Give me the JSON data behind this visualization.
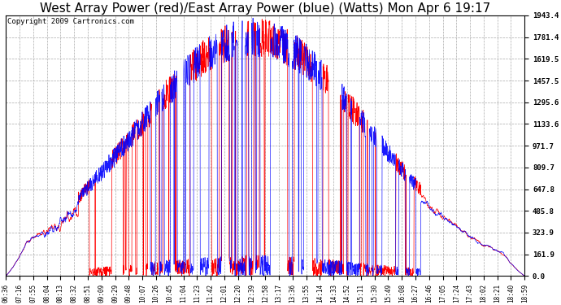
{
  "title": "West Array Power (red)/East Array Power (blue) (Watts) Mon Apr 6 19:17",
  "copyright": "Copyright 2009 Cartronics.com",
  "yticks": [
    0.0,
    161.9,
    323.9,
    485.8,
    647.8,
    809.7,
    971.7,
    1133.6,
    1295.6,
    1457.5,
    1619.5,
    1781.4,
    1943.4
  ],
  "ymax": 1943.4,
  "ymin": 0.0,
  "color_red": "#ff0000",
  "color_blue": "#0000ff",
  "bg_color": "#ffffff",
  "grid_color": "#aaaaaa",
  "title_fontsize": 11,
  "copyright_fontsize": 6.5,
  "xtick_labels": [
    "06:36",
    "07:16",
    "07:55",
    "08:04",
    "08:13",
    "08:32",
    "08:51",
    "09:09",
    "09:29",
    "09:48",
    "10:07",
    "10:26",
    "10:45",
    "11:04",
    "11:23",
    "11:42",
    "12:01",
    "12:20",
    "12:39",
    "12:58",
    "13:17",
    "13:36",
    "13:55",
    "14:14",
    "14:33",
    "14:52",
    "15:11",
    "15:30",
    "15:49",
    "16:08",
    "16:27",
    "16:46",
    "17:05",
    "17:24",
    "17:43",
    "18:02",
    "18:21",
    "18:40",
    "18:59"
  ]
}
